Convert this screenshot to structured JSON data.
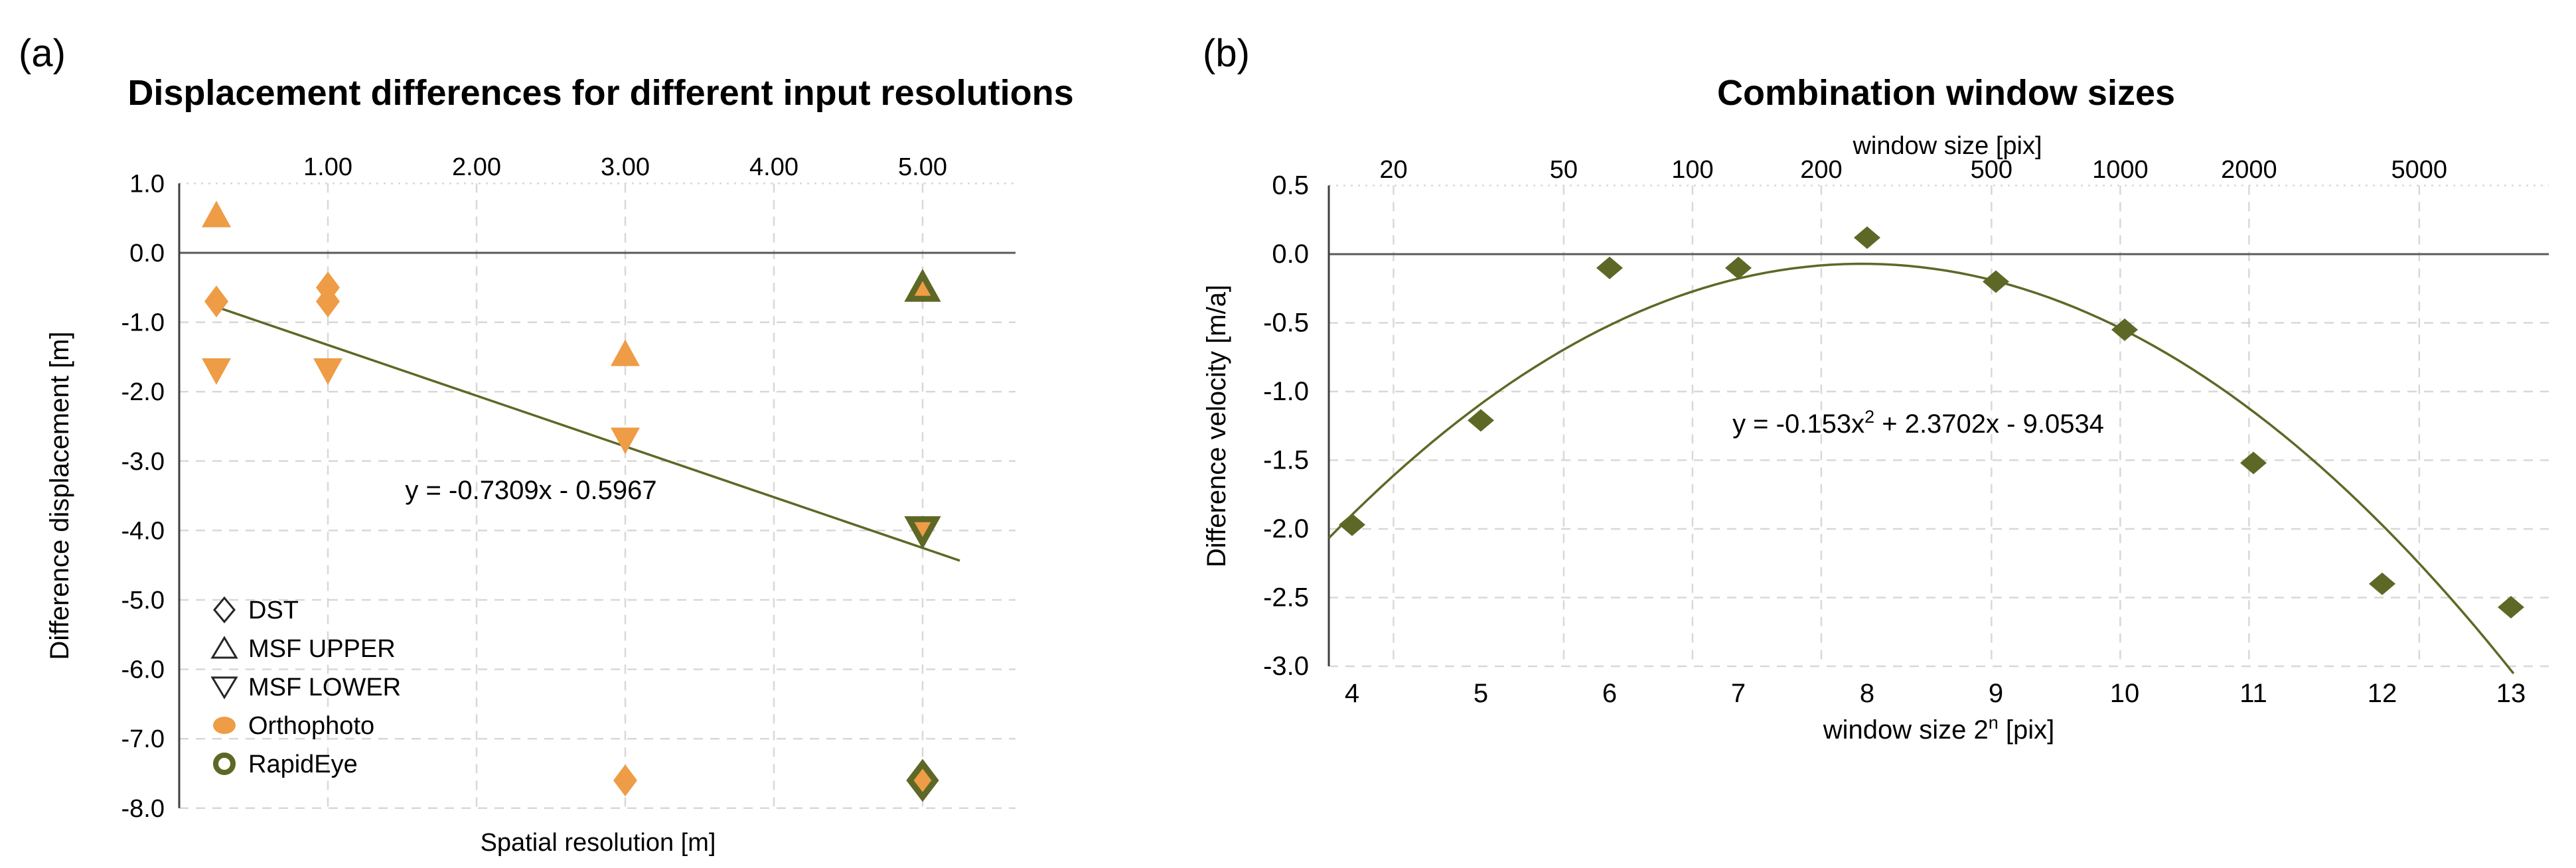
{
  "colors": {
    "orange": "#EE9C45",
    "olive": "#5E6826",
    "grid": "#D8D8D8",
    "zero_line": "#595959",
    "axis_line": "#3F3F3F",
    "text": "#000000"
  },
  "chart_data": [
    {
      "id": "a",
      "type": "scatter",
      "panel_label": "(a)",
      "title": "Displacement differences for different input resolutions",
      "x_axis": {
        "side": "top",
        "tick_labels": [
          "1.00",
          "2.00",
          "3.00",
          "4.00",
          "5.00"
        ],
        "tick_values": [
          1,
          2,
          3,
          4,
          5
        ],
        "range": [
          0,
          5.6
        ]
      },
      "x_bottom_title": "Spatial resolution [m]",
      "y_axis": {
        "title": "Difference displacement [m]",
        "tick_labels": [
          "1.0",
          "0.0",
          "-1.0",
          "-2.0",
          "-3.0",
          "-4.0",
          "-5.0",
          "-6.0",
          "-7.0",
          "-8.0"
        ],
        "tick_values": [
          1,
          0,
          -1,
          -2,
          -3,
          -4,
          -5,
          -6,
          -7,
          -8
        ],
        "range": [
          1,
          -8
        ],
        "grid": "dashed"
      },
      "series": [
        {
          "name": "Orthophoto MSF UPPER",
          "marker": "triangle-up",
          "fill": "orange",
          "stroke": null,
          "points": [
            [
              0.25,
              0.55
            ],
            [
              3,
              -1.45
            ]
          ]
        },
        {
          "name": "Orthophoto DST",
          "marker": "diamond",
          "fill": "orange",
          "stroke": null,
          "points": [
            [
              0.25,
              -0.7
            ],
            [
              1,
              -0.5
            ],
            [
              1,
              -0.7
            ],
            [
              3,
              -7.6
            ]
          ]
        },
        {
          "name": "Orthophoto MSF LOWER",
          "marker": "triangle-down",
          "fill": "orange",
          "stroke": null,
          "points": [
            [
              0.25,
              -1.7
            ],
            [
              1,
              -1.7
            ],
            [
              3,
              -2.7
            ]
          ]
        },
        {
          "name": "RapidEye MSF UPPER",
          "marker": "triangle-up",
          "fill": "orange",
          "stroke": "olive",
          "points": [
            [
              5,
              -0.5
            ]
          ]
        },
        {
          "name": "RapidEye MSF LOWER",
          "marker": "triangle-down",
          "fill": "orange",
          "stroke": "olive",
          "points": [
            [
              5,
              -4.0
            ]
          ]
        },
        {
          "name": "RapidEye DST",
          "marker": "diamond",
          "fill": "orange",
          "stroke": "olive",
          "points": [
            [
              5,
              -7.6
            ]
          ]
        }
      ],
      "trendline": {
        "equation": "y = -0.7309x - 0.5967",
        "slope": -0.7309,
        "intercept": -0.5967,
        "x_start": 0.25,
        "x_end": 5.25
      },
      "legend": {
        "position": "inside-bottom-left",
        "items": [
          {
            "marker": "diamond-open",
            "label": "DST"
          },
          {
            "marker": "triangle-up-open",
            "label": "MSF UPPER"
          },
          {
            "marker": "triangle-down-open",
            "label": "MSF LOWER"
          },
          {
            "marker": "circle-filled",
            "label": "Orthophoto"
          },
          {
            "marker": "circle-open-olive",
            "label": "RapidEye"
          }
        ]
      }
    },
    {
      "id": "b",
      "type": "scatter",
      "panel_label": "(b)",
      "title": "Combination window sizes",
      "x_top_axis": {
        "title": "window size [pix]",
        "scale": "log2",
        "tick_labels": [
          "20",
          "50",
          "100",
          "200",
          "500",
          "1000",
          "2000",
          "5000"
        ],
        "tick_values": [
          20,
          50,
          100,
          200,
          500,
          1000,
          2000,
          5000
        ]
      },
      "x_bottom_axis": {
        "title_parts": {
          "prefix": "window size 2",
          "superscript": "n",
          "suffix": " [pix]"
        },
        "tick_labels": [
          "4",
          "5",
          "6",
          "7",
          "8",
          "9",
          "10",
          "11",
          "12",
          "13"
        ],
        "tick_values": [
          4,
          5,
          6,
          7,
          8,
          9,
          10,
          11,
          12,
          13
        ]
      },
      "y_axis": {
        "title": "Difference velocity [m/a]",
        "tick_labels": [
          "0.5",
          "0.0",
          "-0.5",
          "-1.0",
          "-1.5",
          "-2.0",
          "-2.5",
          "-3.0"
        ],
        "tick_values": [
          0.5,
          0,
          -0.5,
          -1,
          -1.5,
          -2,
          -2.5,
          -3
        ],
        "range": [
          0.5,
          -3
        ],
        "grid": "dashed"
      },
      "points": [
        [
          4,
          -1.97
        ],
        [
          5,
          -1.21
        ],
        [
          6,
          -0.1
        ],
        [
          7,
          -0.1
        ],
        [
          8,
          0.12
        ],
        [
          9,
          -0.2
        ],
        [
          10,
          -0.55
        ],
        [
          11,
          -1.52
        ],
        [
          12,
          -2.4
        ],
        [
          13,
          -2.57
        ]
      ],
      "trendline": {
        "equation_parts": {
          "prefix": "y = -0.153x",
          "superscript": "2",
          "suffix": " + 2.3702x - 9.0534"
        },
        "a": -0.153,
        "b": 2.3702,
        "c": -9.0534
      }
    }
  ]
}
